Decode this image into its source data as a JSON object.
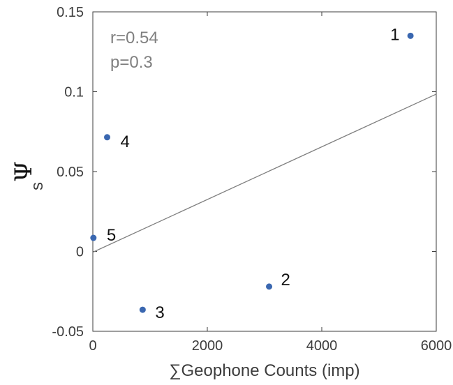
{
  "chart_data": {
    "type": "scatter",
    "title": "",
    "xlabel": "∑Geophone Counts (imp)",
    "ylabel_symbol": "Ψ",
    "ylabel_subscript": "s",
    "xlim": [
      0,
      6000
    ],
    "ylim": [
      -0.05,
      0.15
    ],
    "xticks": [
      0,
      2000,
      4000,
      6000
    ],
    "xtick_labels": [
      "0",
      "2000",
      "4000",
      "6000"
    ],
    "yticks": [
      -0.05,
      0,
      0.05,
      0.1,
      0.15
    ],
    "ytick_labels": [
      "-0.05",
      "0",
      "0.05",
      "0.1",
      "0.15"
    ],
    "grid": false,
    "point_color": "#3a67b0",
    "line_color": "#808080",
    "points": [
      {
        "label": "1",
        "x": 5550,
        "y": 0.135
      },
      {
        "label": "2",
        "x": 3080,
        "y": -0.022
      },
      {
        "label": "3",
        "x": 870,
        "y": -0.0365
      },
      {
        "label": "4",
        "x": 250,
        "y": 0.0715
      },
      {
        "label": "5",
        "x": 10,
        "y": 0.0085
      }
    ],
    "fit_line": {
      "x": [
        0,
        6000
      ],
      "y": [
        -0.0005,
        0.0985
      ]
    },
    "annotations": [
      "r=0.54",
      "p=0.3"
    ]
  }
}
